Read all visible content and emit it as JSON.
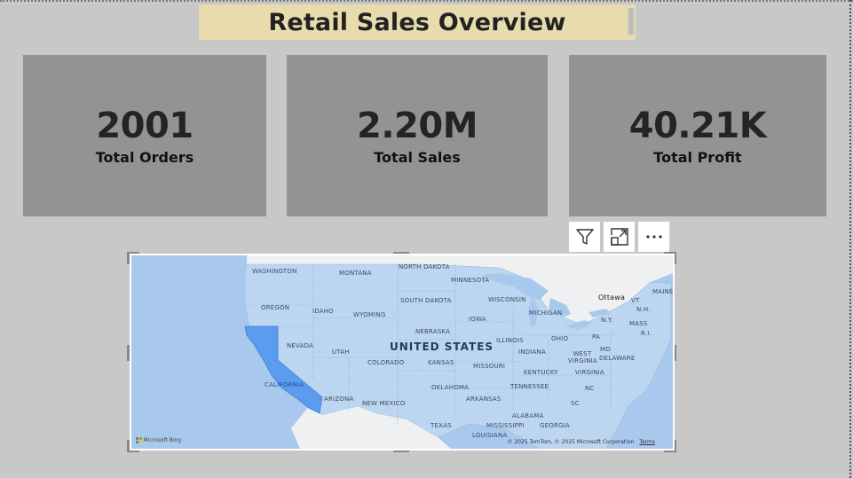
{
  "report": {
    "title": "Retail Sales Overview"
  },
  "cards": [
    {
      "value": "2001",
      "label": "Total Orders"
    },
    {
      "value": "2.20M",
      "label": "Total Sales"
    },
    {
      "value": "40.21K",
      "label": "Total Profit"
    }
  ],
  "visual_toolbar": {
    "filter_icon": "filter-icon",
    "focus_icon": "focus-mode-icon",
    "more_icon": "more-options-icon"
  },
  "map": {
    "country_label": "UNITED STATES",
    "highlighted_state": "CALIFORNIA",
    "highlight_color": "#5b9cf0",
    "states": [
      {
        "id": "washington",
        "label": "WASHINGTON"
      },
      {
        "id": "montana",
        "label": "MONTANA"
      },
      {
        "id": "north-dakota",
        "label": "NORTH DAKOTA"
      },
      {
        "id": "minnesota",
        "label": "MINNESOTA"
      },
      {
        "id": "oregon",
        "label": "OREGON"
      },
      {
        "id": "idaho",
        "label": "IDAHO"
      },
      {
        "id": "wyoming",
        "label": "WYOMING"
      },
      {
        "id": "south-dakota",
        "label": "SOUTH DAKOTA"
      },
      {
        "id": "wisconsin",
        "label": "WISCONSIN"
      },
      {
        "id": "michigan",
        "label": "MICHIGAN"
      },
      {
        "id": "iowa",
        "label": "IOWA"
      },
      {
        "id": "nebraska",
        "label": "NEBRASKA"
      },
      {
        "id": "nevada",
        "label": "NEVADA"
      },
      {
        "id": "utah",
        "label": "UTAH"
      },
      {
        "id": "illinois",
        "label": "ILLINOIS"
      },
      {
        "id": "ohio",
        "label": "OHIO"
      },
      {
        "id": "pa",
        "label": "PA"
      },
      {
        "id": "colorado",
        "label": "COLORADO"
      },
      {
        "id": "kansas",
        "label": "KANSAS"
      },
      {
        "id": "missouri",
        "label": "MISSOURI"
      },
      {
        "id": "indiana",
        "label": "INDIANA"
      },
      {
        "id": "west-virginia",
        "label": "WEST VIRGINIA"
      },
      {
        "id": "md",
        "label": "MD"
      },
      {
        "id": "delaware",
        "label": "DELAWARE"
      },
      {
        "id": "kentucky",
        "label": "KENTUCKY"
      },
      {
        "id": "virginia",
        "label": "VIRGINIA"
      },
      {
        "id": "arizona",
        "label": "ARIZONA"
      },
      {
        "id": "new-mexico",
        "label": "NEW MEXICO"
      },
      {
        "id": "oklahoma",
        "label": "OKLAHOMA"
      },
      {
        "id": "tennessee",
        "label": "TENNESSEE"
      },
      {
        "id": "nc",
        "label": "NC"
      },
      {
        "id": "arkansas",
        "label": "ARKANSAS"
      },
      {
        "id": "sc",
        "label": "SC"
      },
      {
        "id": "texas",
        "label": "TEXAS"
      },
      {
        "id": "alabama",
        "label": "ALABAMA"
      },
      {
        "id": "mississippi",
        "label": "MISSISSIPPI"
      },
      {
        "id": "georgia",
        "label": "GEORGIA"
      },
      {
        "id": "louisiana",
        "label": "LOUISIANA"
      },
      {
        "id": "ny",
        "label": "N.Y."
      },
      {
        "id": "mass",
        "label": "MASS"
      },
      {
        "id": "vt",
        "label": "VT"
      },
      {
        "id": "nh",
        "label": "N.H."
      },
      {
        "id": "ri",
        "label": "R.I."
      },
      {
        "id": "maine",
        "label": "MAINE"
      }
    ],
    "city_ottawa": "Ottawa",
    "copyright": "© 2025 TomTom, © 2025 Microsoft Corporation",
    "terms": "Terms",
    "provider": "Microsoft Bing"
  }
}
